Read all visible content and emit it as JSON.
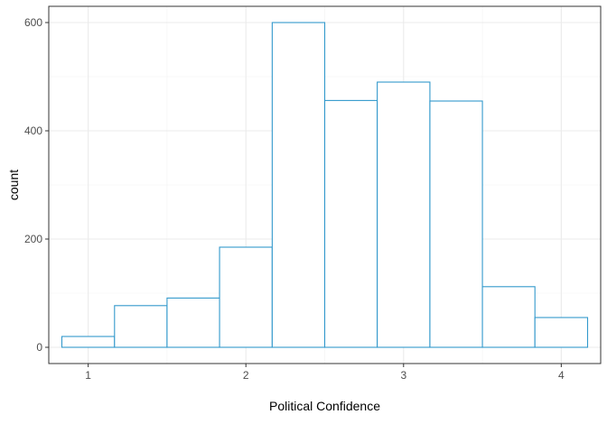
{
  "chart_data": {
    "type": "bar",
    "subtype": "histogram",
    "title": "",
    "xlabel": "Political Confidence",
    "ylabel": "count",
    "xlim": [
      0.75,
      4.25
    ],
    "ylim": [
      -30,
      630
    ],
    "x_ticks": [
      1,
      2,
      3,
      4
    ],
    "x_tick_labels": [
      "1",
      "2",
      "3",
      "4"
    ],
    "y_ticks": [
      0,
      200,
      400,
      600
    ],
    "y_tick_labels": [
      "0",
      "200",
      "400",
      "600"
    ],
    "x_minor_ticks": [
      1.5,
      2.5,
      3.5
    ],
    "y_minor_ticks": [
      100,
      300,
      500
    ],
    "bins": [
      {
        "x_start": 0.833,
        "x_end": 1.167,
        "count": 20
      },
      {
        "x_start": 1.167,
        "x_end": 1.5,
        "count": 77
      },
      {
        "x_start": 1.5,
        "x_end": 1.833,
        "count": 91
      },
      {
        "x_start": 1.833,
        "x_end": 2.167,
        "count": 185
      },
      {
        "x_start": 2.167,
        "x_end": 2.5,
        "count": 600
      },
      {
        "x_start": 2.5,
        "x_end": 2.833,
        "count": 456
      },
      {
        "x_start": 2.833,
        "x_end": 3.167,
        "count": 490
      },
      {
        "x_start": 3.167,
        "x_end": 3.5,
        "count": 455
      },
      {
        "x_start": 3.5,
        "x_end": 3.833,
        "count": 112
      },
      {
        "x_start": 3.833,
        "x_end": 4.167,
        "count": 55
      }
    ],
    "bar_outline_color": "#3399cc",
    "bar_fill_color": "#ffffff",
    "grid": true,
    "legend": "none",
    "theme": "bw"
  }
}
